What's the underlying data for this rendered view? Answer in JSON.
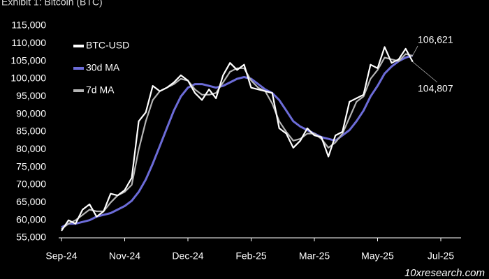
{
  "chart_data": {
    "type": "line",
    "title": "Exhibit 1: Bitcoin (BTC)",
    "watermark": "10xresearch.com",
    "legend": "upper left",
    "ylim": [
      55000,
      115000
    ],
    "yticks": [
      {
        "value": 55000,
        "label": "55,000"
      },
      {
        "value": 60000,
        "label": "60,000"
      },
      {
        "value": 65000,
        "label": "65,000"
      },
      {
        "value": 70000,
        "label": "70,000"
      },
      {
        "value": 75000,
        "label": "75,000"
      },
      {
        "value": 80000,
        "label": "80,000"
      },
      {
        "value": 85000,
        "label": "85,000"
      },
      {
        "value": 90000,
        "label": "90,000"
      },
      {
        "value": 95000,
        "label": "95,000"
      },
      {
        "value": 100000,
        "label": "100,000"
      },
      {
        "value": 105000,
        "label": "105,000"
      },
      {
        "value": 110000,
        "label": "110,000"
      },
      {
        "value": 115000,
        "label": "115,000"
      }
    ],
    "categories": [
      "Sep-24",
      null,
      null,
      null,
      null,
      null,
      null,
      null,
      null,
      "Nov-24",
      null,
      null,
      null,
      null,
      null,
      null,
      null,
      null,
      "Dec-24",
      null,
      null,
      null,
      null,
      null,
      null,
      null,
      null,
      "Feb-25",
      null,
      null,
      null,
      null,
      null,
      null,
      null,
      null,
      "Mar-25",
      null,
      null,
      null,
      null,
      null,
      null,
      null,
      null,
      "May-25",
      null,
      null,
      null,
      null,
      null,
      null,
      null,
      null,
      "Jul-25"
    ],
    "series": [
      {
        "name": "BTC-USD",
        "color": "#ffffff",
        "width": 2.2,
        "values": [
          57000,
          60000,
          59000,
          63000,
          64500,
          61000,
          62500,
          67500,
          67000,
          68500,
          72000,
          88000,
          90500,
          98000,
          96500,
          97500,
          99000,
          101000,
          99500,
          96000,
          94000,
          97000,
          94500,
          101000,
          104500,
          102500,
          104000,
          97500,
          97000,
          96500,
          96000,
          86000,
          84500,
          80500,
          82500,
          86000,
          84000,
          83500,
          78000,
          84000,
          85000,
          93500,
          94500,
          95500,
          104000,
          103000,
          109000,
          104500,
          105500,
          108500,
          104807,
          null,
          null,
          null,
          null
        ],
        "value_labels": [
          null,
          null,
          null,
          null,
          null,
          null,
          null,
          null,
          null,
          null,
          null,
          null,
          null,
          null,
          null,
          null,
          null,
          null,
          null,
          null,
          null,
          null,
          null,
          null,
          null,
          null,
          null,
          null,
          null,
          null,
          null,
          null,
          null,
          null,
          null,
          null,
          null,
          null,
          null,
          null,
          null,
          null,
          null,
          null,
          null,
          null,
          null,
          null,
          null,
          null,
          "104,807",
          null,
          null,
          null,
          null
        ],
        "label_color": "#ffffff"
      },
      {
        "name": "30d MA",
        "color": "#6c6cd8",
        "width": 3,
        "values": [
          58000,
          59000,
          59000,
          59500,
          60000,
          61000,
          61500,
          62000,
          63000,
          64000,
          65500,
          68000,
          71500,
          76000,
          81000,
          86000,
          91000,
          95000,
          97500,
          98500,
          98500,
          98000,
          97500,
          98000,
          99000,
          100000,
          100500,
          100000,
          98500,
          97000,
          96000,
          94000,
          91000,
          88000,
          86500,
          85500,
          84500,
          83500,
          83000,
          82500,
          84000,
          85500,
          88000,
          91000,
          95000,
          98000,
          101500,
          103500,
          105000,
          106000,
          106621,
          null,
          null,
          null,
          null
        ],
        "value_labels": [
          null,
          null,
          null,
          null,
          null,
          null,
          null,
          null,
          null,
          null,
          null,
          null,
          null,
          null,
          null,
          null,
          null,
          null,
          null,
          null,
          null,
          null,
          null,
          null,
          null,
          null,
          null,
          null,
          null,
          null,
          null,
          null,
          null,
          null,
          null,
          null,
          null,
          null,
          null,
          null,
          null,
          null,
          null,
          null,
          null,
          null,
          null,
          null,
          null,
          null,
          "106,621",
          null,
          null,
          null,
          null
        ],
        "label_color": "#8080ee"
      },
      {
        "name": "7d MA",
        "color": "#b4b4b4",
        "width": 2.2,
        "values": [
          57500,
          59000,
          60000,
          61500,
          63000,
          62500,
          62500,
          65000,
          67000,
          68000,
          70000,
          80000,
          88000,
          94000,
          96500,
          97500,
          98500,
          100000,
          99500,
          97000,
          95500,
          95500,
          96000,
          99000,
          102000,
          103000,
          103000,
          99500,
          97500,
          96500,
          93000,
          88000,
          85000,
          82500,
          83000,
          84500,
          84500,
          83000,
          80500,
          82000,
          84500,
          89000,
          93500,
          95000,
          100000,
          102500,
          106000,
          105500,
          105000,
          107000,
          106500,
          null,
          null,
          null,
          null
        ]
      }
    ]
  }
}
